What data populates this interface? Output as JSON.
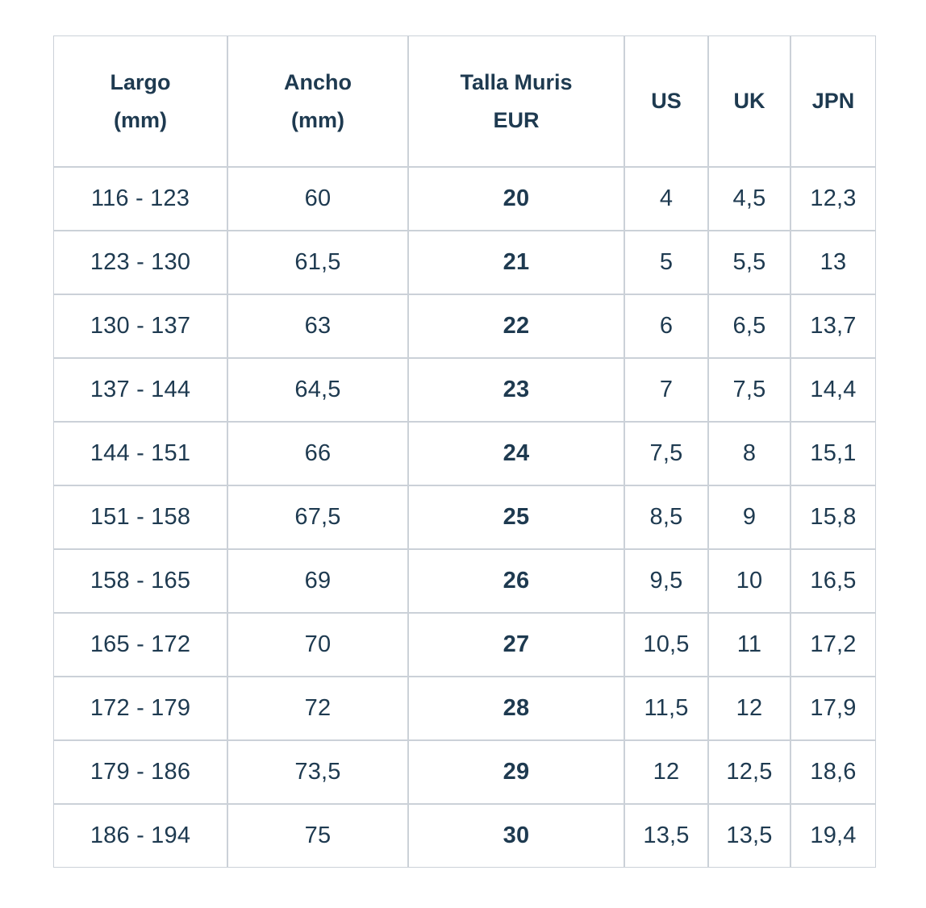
{
  "chart_data": {
    "type": "table",
    "columns": [
      "Largo\n(mm)",
      "Ancho\n(mm)",
      "Talla Muris\nEUR",
      "US",
      "UK",
      "JPN"
    ],
    "rows": [
      [
        "116 - 123",
        "60",
        "20",
        "4",
        "4,5",
        "12,3"
      ],
      [
        "123 - 130",
        "61,5",
        "21",
        "5",
        "5,5",
        "13"
      ],
      [
        "130 - 137",
        "63",
        "22",
        "6",
        "6,5",
        "13,7"
      ],
      [
        "137 - 144",
        "64,5",
        "23",
        "7",
        "7,5",
        "14,4"
      ],
      [
        "144 - 151",
        "66",
        "24",
        "7,5",
        "8",
        "15,1"
      ],
      [
        "151 - 158",
        "67,5",
        "25",
        "8,5",
        "9",
        "15,8"
      ],
      [
        "158 - 165",
        "69",
        "26",
        "9,5",
        "10",
        "16,5"
      ],
      [
        "165 - 172",
        "70",
        "27",
        "10,5",
        "11",
        "17,2"
      ],
      [
        "172 - 179",
        "72",
        "28",
        "11,5",
        "12",
        "17,9"
      ],
      [
        "179 - 186",
        "73,5",
        "29",
        "12",
        "12,5",
        "18,6"
      ],
      [
        "186 - 194",
        "75",
        "30",
        "13,5",
        "13,5",
        "19,4"
      ]
    ],
    "bold_column": "Talla Muris EUR",
    "layout_hints": {
      "grid": true,
      "header_bold": true,
      "cell_alignment": "center"
    },
    "colors": {
      "text": "#1e3a50",
      "border": "#cbd1d8",
      "cell_background": "#ffffff",
      "page_background": "#ffffff"
    }
  }
}
